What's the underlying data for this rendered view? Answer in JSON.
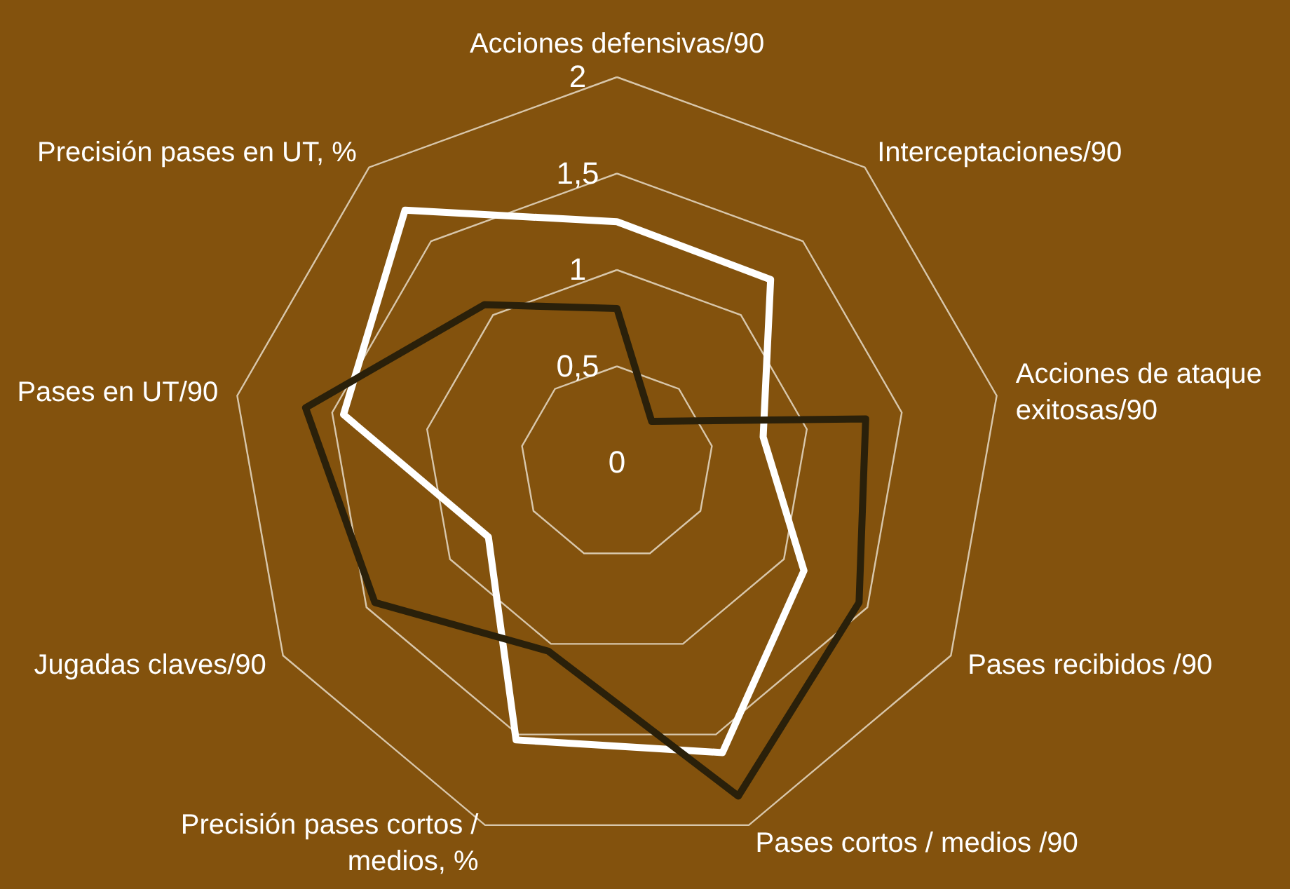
{
  "chart_data": {
    "type": "radar",
    "categories": [
      "Acciones defensivas/90",
      "Interceptaciones/90",
      "Acciones de ataque\nexitosas/90",
      "Pases recibidos /90",
      "Pases cortos / medios /90",
      "Precisión pases cortos /\nmedios, %",
      "Jugadas claves/90",
      "Pases en UT/90",
      "Precisión pases en UT, %"
    ],
    "series": [
      {
        "color": "#ffffff",
        "values": [
          1.25,
          1.24,
          0.77,
          1.12,
          1.6,
          1.53,
          0.77,
          1.44,
          1.71
        ]
      },
      {
        "color": "#2a200a",
        "values": [
          0.8,
          0.28,
          1.31,
          1.45,
          1.84,
          1.04,
          1.45,
          1.64,
          1.07
        ]
      }
    ],
    "ylim": [
      0,
      2
    ],
    "yticks": [
      0,
      {
        "value": 0.5,
        "label": "0,5"
      },
      1,
      {
        "value": 1.5,
        "label": "1,5"
      },
      2
    ],
    "grid": true
  }
}
